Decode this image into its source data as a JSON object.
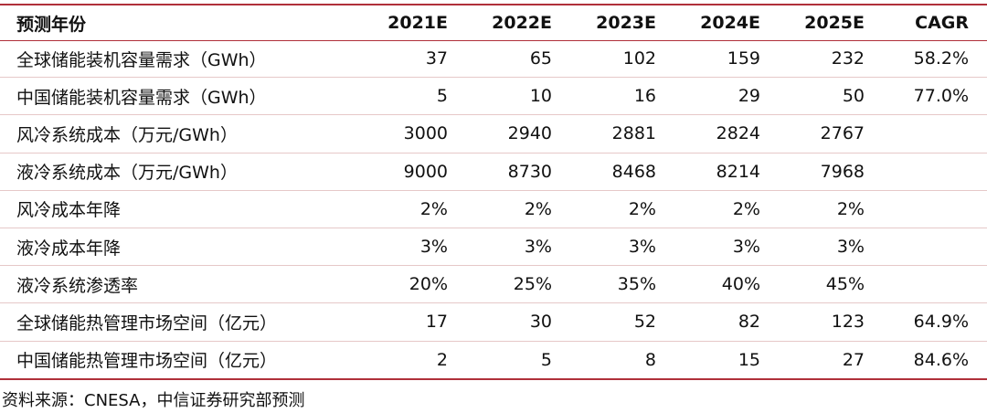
{
  "table": {
    "header": [
      "预测年份",
      "2021E",
      "2022E",
      "2023E",
      "2024E",
      "2025E",
      "CAGR"
    ],
    "rows": [
      [
        "全球储能装机容量需求（GWh）",
        "37",
        "65",
        "102",
        "159",
        "232",
        "58.2%"
      ],
      [
        "中国储能装机容量需求（GWh）",
        "5",
        "10",
        "16",
        "29",
        "50",
        "77.0%"
      ],
      [
        "风冷系统成本（万元/GWh）",
        "3000",
        "2940",
        "2881",
        "2824",
        "2767"
      ],
      [
        "液冷系统成本（万元/GWh）",
        "9000",
        "8730",
        "8468",
        "8214",
        "7968"
      ],
      [
        "风冷成本年降",
        "2%",
        "2%",
        "2%",
        "2%",
        "2%"
      ],
      [
        "液冷成本年降",
        "3%",
        "3%",
        "3%",
        "3%",
        "3%"
      ],
      [
        "液冷系统渗透率",
        "20%",
        "25%",
        "35%",
        "40%",
        "45%"
      ],
      [
        "全球储能热管理市场空间（亿元）",
        "17",
        "30",
        "52",
        "82",
        "123",
        "64.9%"
      ],
      [
        "中国储能热管理市场空间（亿元）",
        "2",
        "5",
        "8",
        "15",
        "27",
        "84.6%"
      ]
    ]
  },
  "source": "资料来源：CNESA，中信证券研究部预测"
}
